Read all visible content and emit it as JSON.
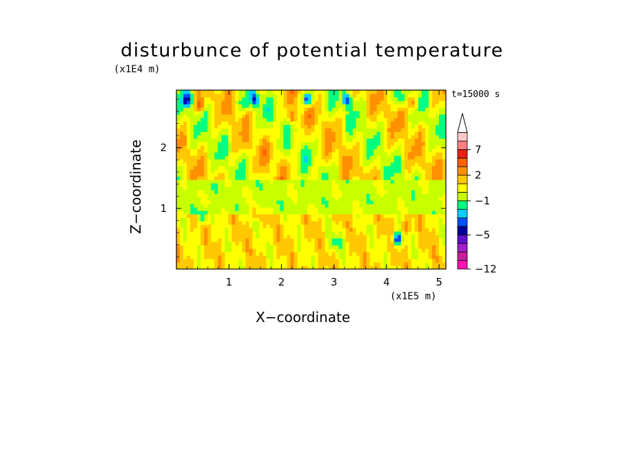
{
  "chart_data": {
    "type": "heatmap",
    "title": "disturbunce of potential temperature",
    "xlabel": "X−coordinate",
    "ylabel": "Z−coordinate",
    "x_unit": "(x1E5 m)",
    "y_unit": "(x1E4 m)",
    "time_label": "t=15000 s",
    "xlim": [
      0,
      5.13
    ],
    "ylim": [
      0,
      2.95
    ],
    "x_ticks": [
      "1",
      "2",
      "3",
      "4",
      "5"
    ],
    "y_ticks": [
      "1",
      "2"
    ],
    "colorbar": {
      "levels": [
        -12,
        -10,
        -8,
        -6,
        -5,
        -4,
        -3,
        -2,
        -1,
        0,
        1,
        2,
        3,
        5,
        7,
        9,
        11
      ],
      "tick_labels": [
        "−12",
        "−5",
        "−1",
        "2",
        "7"
      ],
      "colors": [
        "#ff10b0",
        "#c81e9e",
        "#a020c8",
        "#6010d0",
        "#0000a0",
        "#0050ff",
        "#00d0ff",
        "#00ff80",
        "#c8ff00",
        "#ffff00",
        "#ffc800",
        "#ff9000",
        "#ff6000",
        "#e82010",
        "#ff8080",
        "#ffc8c8"
      ],
      "extend_max": true
    },
    "field_features": [
      {
        "x": 0.45,
        "z": 2.7,
        "value": 3
      },
      {
        "x": 1.3,
        "z": 2.7,
        "value": -2
      },
      {
        "x": 1.5,
        "z": 2.8,
        "value": -4
      },
      {
        "x": 2.5,
        "z": 2.8,
        "value": -5
      },
      {
        "x": 2.2,
        "z": 2.5,
        "value": 3
      },
      {
        "x": 3.25,
        "z": 2.8,
        "value": -4
      },
      {
        "x": 4.3,
        "z": 2.8,
        "value": -2
      },
      {
        "x": 4.5,
        "z": 2.75,
        "value": 3
      },
      {
        "x": 0.2,
        "z": 2.8,
        "value": -4
      },
      {
        "x": 0.5,
        "z": 0.85,
        "value": -3
      },
      {
        "x": 1.5,
        "z": 0.95,
        "value": 2
      },
      {
        "x": 3.0,
        "z": 0.45,
        "value": -1
      },
      {
        "x": 4.2,
        "z": 0.5,
        "value": -5
      },
      {
        "x": 4.35,
        "z": 0.7,
        "value": 2
      }
    ]
  }
}
